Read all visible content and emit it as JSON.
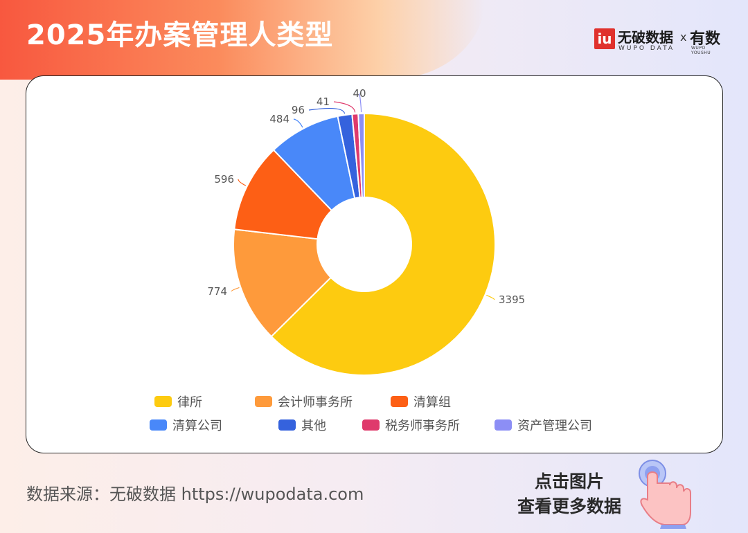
{
  "header": {
    "title": "2025年办案管理人类型",
    "logo_mark": "iu",
    "logo_text": "无破数据",
    "logo_sub": "WUPO DATA",
    "logo_separator": "x",
    "partner_text": "有数",
    "partner_sub": "WUPO YOUSHU"
  },
  "footer": {
    "source": "数据来源：无破数据 https://wupodata.com",
    "cta_line1": "点击图片",
    "cta_line2": "查看更多数据",
    "cta_icon": "tap-hand-icon"
  },
  "chart_data": {
    "type": "pie",
    "variant": "donut",
    "title": "",
    "legend_position": "bottom",
    "series": [
      {
        "name": "律所",
        "value": 3395,
        "color": "#fdcb10"
      },
      {
        "name": "会计师事务所",
        "value": 774,
        "color": "#fe9a3b"
      },
      {
        "name": "清算组",
        "value": 596,
        "color": "#fd5f15"
      },
      {
        "name": "清算公司",
        "value": 484,
        "color": "#4988f9"
      },
      {
        "name": "其他",
        "value": 96,
        "color": "#3562dd"
      },
      {
        "name": "税务师事务所",
        "value": 41,
        "color": "#df3a6c"
      },
      {
        "name": "资产管理公司",
        "value": 40,
        "color": "#8c8ef5"
      }
    ]
  }
}
